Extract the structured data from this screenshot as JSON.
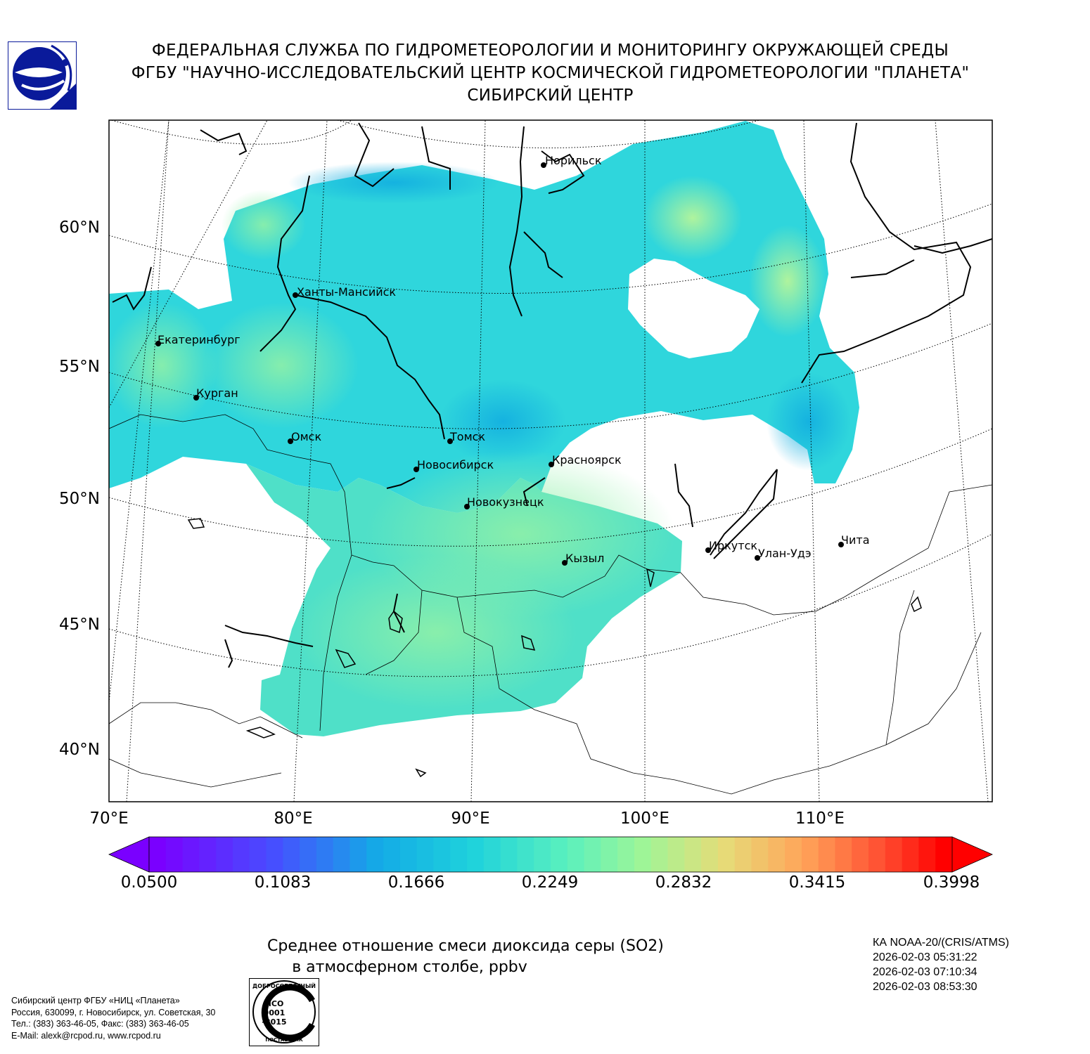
{
  "header": {
    "line1": "ФЕДЕРАЛЬНАЯ СЛУЖБА ПО ГИДРОМЕТЕОРОЛОГИИ И МОНИТОРИНГУ ОКРУЖАЮЩЕЙ СРЕДЫ",
    "line2": "ФГБУ \"НАУЧНО-ИССЛЕДОВАТЕЛЬСКИЙ ЦЕНТР КОСМИЧЕСКОЙ ГИДРОМЕТЕОРОЛОГИИ \"ПЛАНЕТА\"",
    "line3": "СИБИРСКИЙ ЦЕНТР"
  },
  "map": {
    "lat_labels": [
      "60°N",
      "55°N",
      "50°N",
      "45°N",
      "40°N"
    ],
    "lon_labels": [
      "70°E",
      "80°E",
      "90°E",
      "100°E",
      "110°E"
    ],
    "cities": [
      {
        "name": "Норильск"
      },
      {
        "name": "Ханты-Мансийск"
      },
      {
        "name": "Екатеринбург"
      },
      {
        "name": "Курган"
      },
      {
        "name": "Омск"
      },
      {
        "name": "Томск"
      },
      {
        "name": "Новосибирск"
      },
      {
        "name": "Красноярск"
      },
      {
        "name": "Новокузнецк"
      },
      {
        "name": "Кызыл"
      },
      {
        "name": "Иркутск"
      },
      {
        "name": "Улан-Удэ"
      },
      {
        "name": "Чита"
      }
    ],
    "field_min_color": "#7a00ff",
    "field_max_color": "#ff0000"
  },
  "colorbar": {
    "ticks": [
      "0.0500",
      "0.1083",
      "0.1666",
      "0.2249",
      "0.2832",
      "0.3415",
      "0.3998"
    ],
    "min": 0.05,
    "max": 0.3998
  },
  "caption": {
    "line1": "Среднее отношение смеси диоксида серы (SO2)",
    "line2": "в атмосферном столбе, ppbv"
  },
  "satellite": {
    "name": "КА NOAA-20/(CRIS/ATMS)",
    "times": [
      "2026-02-03 05:31:22",
      "2026-02-03 07:10:34",
      "2026-02-03 08:53:30"
    ]
  },
  "org": {
    "line1": "Сибирский центр ФГБУ «НИЦ «Планета»",
    "line2": "Россия, 630099, г. Новосибирск, ул. Советская, 30",
    "line3": "Тел.: (383) 363-46-05, Факс: (383) 363-46-05",
    "line4": "E-Mail: alexk@rcpod.ru, www.rcpod.ru"
  },
  "iso_badge": {
    "top": "ДОБРОСОВЕСТНЫЙ",
    "l1": "ИСО",
    "l2": "9001",
    "l3": "-2015",
    "bottom": "ПОСТАВЩИК"
  }
}
